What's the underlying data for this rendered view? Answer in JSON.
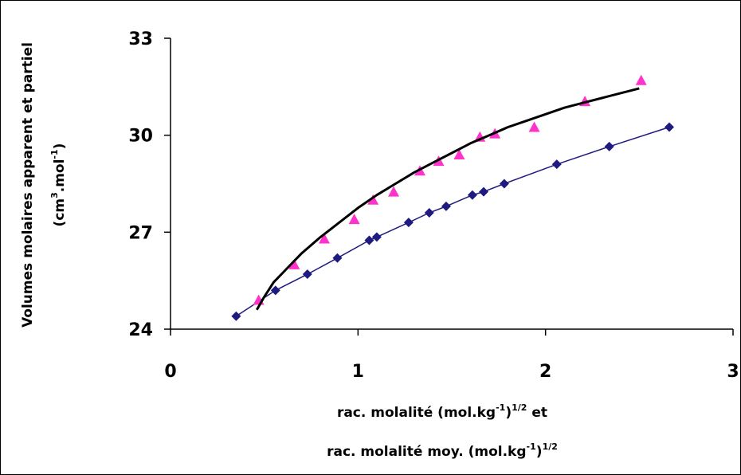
{
  "chart_data": {
    "type": "scatter",
    "xlim": [
      0,
      3
    ],
    "ylim": [
      24,
      33
    ],
    "x_ticks": [
      "0",
      "1",
      "2",
      "3"
    ],
    "y_ticks": [
      "24",
      "27",
      "30",
      "33"
    ],
    "xlabel_line1": {
      "a": "rac. molalité (mol.kg",
      "sup1": "-1",
      "b": ")",
      "sup2": "1/2",
      "c": " et"
    },
    "xlabel_line2": {
      "a": "rac. molalité moy. (mol.kg",
      "sup1": "-1",
      "b": ")",
      "sup2": "1/2"
    },
    "ylabel_line1": "Volumes molaires apparent et partiel",
    "ylabel_line2": {
      "a": "(cm",
      "sup1": "3",
      "b": ".mol",
      "sup2": "-1",
      "c": ")"
    },
    "grid": false,
    "series": [
      {
        "marker": "diamond",
        "color": "#1f1a80",
        "line": true,
        "x": [
          0.35,
          0.56,
          0.73,
          0.89,
          1.06,
          1.1,
          1.27,
          1.38,
          1.47,
          1.61,
          1.67,
          1.78,
          2.06,
          2.34,
          2.66
        ],
        "y": [
          24.4,
          25.2,
          25.7,
          26.2,
          26.75,
          26.85,
          27.3,
          27.6,
          27.8,
          28.15,
          28.25,
          28.5,
          29.1,
          29.65,
          30.25
        ]
      },
      {
        "marker": "triangle",
        "color": "#ff33cc",
        "line": false,
        "x": [
          0.47,
          0.66,
          0.82,
          0.98,
          1.08,
          1.19,
          1.33,
          1.43,
          1.54,
          1.65,
          1.73,
          1.94,
          2.21,
          2.51
        ],
        "y": [
          24.9,
          26.0,
          26.8,
          27.4,
          28.0,
          28.25,
          28.9,
          29.2,
          29.4,
          29.95,
          30.05,
          30.25,
          31.05,
          31.7
        ]
      },
      {
        "marker": "none",
        "color": "#000000",
        "line": true,
        "x": [
          0.46,
          0.5,
          0.55,
          0.6,
          0.7,
          0.8,
          0.9,
          1.0,
          1.1,
          1.2,
          1.3,
          1.4,
          1.5,
          1.6,
          1.7,
          1.8,
          1.9,
          2.0,
          2.1,
          2.2,
          2.3,
          2.4,
          2.5
        ],
        "y": [
          24.6,
          25.0,
          25.45,
          25.75,
          26.35,
          26.85,
          27.3,
          27.75,
          28.15,
          28.5,
          28.85,
          29.15,
          29.45,
          29.75,
          30.0,
          30.25,
          30.45,
          30.65,
          30.85,
          31.0,
          31.15,
          31.3,
          31.45
        ]
      }
    ]
  }
}
